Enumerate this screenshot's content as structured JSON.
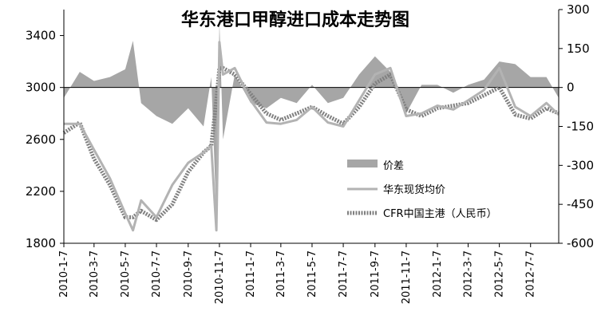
{
  "chart_data": {
    "type": "line",
    "title": "华东港口甲醇进口成本走势图",
    "xlabel": "",
    "ylabel": "",
    "y_left": {
      "ticks": [
        3400,
        3000,
        2600,
        2200,
        1800
      ],
      "lim": [
        1800,
        3600
      ]
    },
    "y_right": {
      "ticks": [
        300,
        150,
        0,
        -150,
        -300,
        -450,
        -600
      ],
      "lim": [
        -600,
        300
      ]
    },
    "x_ticks": [
      "2010-1-7",
      "2010-3-7",
      "2010-5-7",
      "2010-7-7",
      "2010-9-7",
      "2010-11-7",
      "2011-1-7",
      "2011-3-7",
      "2011-5-7",
      "2011-7-7",
      "2011-9-7",
      "2011-11-7",
      "2012-1-7",
      "2012-3-7",
      "2012-5-7",
      "2012-7-7"
    ],
    "legend": {
      "placement": "center-right"
    },
    "colors": {
      "spread": "#a6a6a6",
      "spot": "#b3b3b3",
      "cfr": "#808080"
    },
    "series": [
      {
        "name": "价差",
        "kind": "area",
        "axis": "right",
        "x": [
          "2010-1-7",
          "2010-2-7",
          "2010-3-7",
          "2010-4-7",
          "2010-5-7",
          "2010-5-22",
          "2010-6-7",
          "2010-7-7",
          "2010-8-7",
          "2010-9-7",
          "2010-10-7",
          "2010-10-22",
          "2010-11-1",
          "2010-11-7",
          "2010-11-14",
          "2010-12-7",
          "2011-1-7",
          "2011-2-7",
          "2011-3-7",
          "2011-4-7",
          "2011-5-7",
          "2011-6-7",
          "2011-7-7",
          "2011-8-7",
          "2011-9-7",
          "2011-10-7",
          "2011-11-7",
          "2011-12-7",
          "2012-1-7",
          "2012-2-7",
          "2012-3-7",
          "2012-4-7",
          "2012-5-7",
          "2012-6-7",
          "2012-7-7",
          "2012-8-7",
          "2012-8-31"
        ],
        "values": [
          -40,
          60,
          25,
          40,
          70,
          180,
          -60,
          -110,
          -140,
          -80,
          -150,
          40,
          -500,
          250,
          -200,
          50,
          -60,
          -80,
          -40,
          -60,
          10,
          -60,
          -40,
          50,
          120,
          60,
          -100,
          10,
          10,
          -20,
          10,
          30,
          100,
          90,
          40,
          40,
          -40
        ]
      },
      {
        "name": "华东现货均价",
        "kind": "line",
        "axis": "left",
        "x": [
          "2010-1-7",
          "2010-2-7",
          "2010-3-7",
          "2010-4-7",
          "2010-5-7",
          "2010-5-22",
          "2010-6-7",
          "2010-7-7",
          "2010-8-7",
          "2010-9-7",
          "2010-10-7",
          "2010-10-22",
          "2010-11-1",
          "2010-11-7",
          "2010-11-14",
          "2010-12-7",
          "2011-1-7",
          "2011-2-7",
          "2011-3-7",
          "2011-4-7",
          "2011-5-7",
          "2011-6-7",
          "2011-7-7",
          "2011-8-7",
          "2011-9-7",
          "2011-10-7",
          "2011-11-7",
          "2011-12-7",
          "2012-1-7",
          "2012-2-7",
          "2012-3-7",
          "2012-4-7",
          "2012-5-7",
          "2012-6-7",
          "2012-7-7",
          "2012-8-7",
          "2012-8-31"
        ],
        "values": [
          2720,
          2720,
          2520,
          2300,
          2030,
          1900,
          2130,
          2000,
          2250,
          2420,
          2500,
          2550,
          1900,
          3350,
          3100,
          3150,
          2900,
          2730,
          2720,
          2750,
          2850,
          2730,
          2700,
          2900,
          3100,
          3150,
          2780,
          2800,
          2860,
          2830,
          2900,
          2980,
          3150,
          2850,
          2780,
          2880,
          2790
        ]
      },
      {
        "name": "CFR中国主港（人民币）",
        "kind": "line",
        "axis": "left",
        "x": [
          "2010-1-7",
          "2010-2-7",
          "2010-3-7",
          "2010-4-7",
          "2010-5-7",
          "2010-5-22",
          "2010-6-7",
          "2010-7-7",
          "2010-8-7",
          "2010-9-7",
          "2010-10-7",
          "2010-10-22",
          "2010-11-1",
          "2010-11-7",
          "2010-11-14",
          "2010-12-7",
          "2011-1-7",
          "2011-2-7",
          "2011-3-7",
          "2011-4-7",
          "2011-5-7",
          "2011-6-7",
          "2011-7-7",
          "2011-8-7",
          "2011-9-7",
          "2011-10-7",
          "2011-11-7",
          "2011-12-7",
          "2012-1-7",
          "2012-2-7",
          "2012-3-7",
          "2012-4-7",
          "2012-5-7",
          "2012-6-7",
          "2012-7-7",
          "2012-8-7",
          "2012-8-31"
        ],
        "values": [
          2650,
          2730,
          2450,
          2250,
          2000,
          2000,
          2050,
          1980,
          2100,
          2350,
          2500,
          2550,
          2900,
          3150,
          3150,
          3100,
          2950,
          2800,
          2750,
          2800,
          2850,
          2780,
          2720,
          2850,
          3030,
          3100,
          2830,
          2780,
          2840,
          2860,
          2880,
          2940,
          3000,
          2790,
          2760,
          2840,
          2800
        ]
      }
    ]
  }
}
